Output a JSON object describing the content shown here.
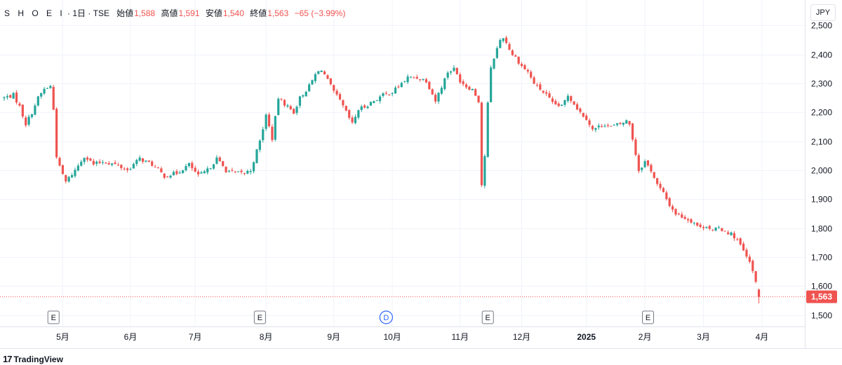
{
  "header": {
    "symbol": "S H O E I",
    "interval": " · 1日 · ",
    "exchange": "TSE",
    "open_label": "始値",
    "open": "1,588",
    "high_label": "高値",
    "high": "1,591",
    "low_label": "安値",
    "low": "1,540",
    "close_label": "終値",
    "close": "1,563",
    "change": "−65 (−3.99%)"
  },
  "currency_button": "JPY",
  "branding": {
    "mark": "17",
    "name": "TradingView"
  },
  "colors": {
    "up": "#26a69a",
    "down": "#ef5350",
    "event_e": "#131722",
    "event_d": "#2962ff"
  },
  "chart_data": {
    "type": "candlestick",
    "ylim": [
      1470,
      2530
    ],
    "y_ticks": [
      "1,500",
      "1,600",
      "1,700",
      "1,800",
      "1,900",
      "2,000",
      "2,100",
      "2,200",
      "2,300",
      "2,400",
      "2,500"
    ],
    "y_tick_values": [
      1500,
      1600,
      1700,
      1800,
      1900,
      2000,
      2100,
      2200,
      2300,
      2400,
      2500
    ],
    "x_ticks": [
      {
        "label": "5月",
        "index": 19,
        "bold": false
      },
      {
        "label": "6月",
        "index": 41,
        "bold": false
      },
      {
        "label": "7月",
        "index": 62,
        "bold": false
      },
      {
        "label": "8月",
        "index": 85,
        "bold": false
      },
      {
        "label": "9月",
        "index": 107,
        "bold": false
      },
      {
        "label": "10月",
        "index": 126,
        "bold": false
      },
      {
        "label": "11月",
        "index": 148,
        "bold": false
      },
      {
        "label": "12月",
        "index": 168,
        "bold": false
      },
      {
        "label": "2025",
        "index": 189,
        "bold": true
      },
      {
        "label": "2月",
        "index": 208,
        "bold": false
      },
      {
        "label": "3月",
        "index": 227,
        "bold": false
      },
      {
        "label": "4月",
        "index": 246,
        "bold": false
      }
    ],
    "last_price": 1563,
    "last_price_label": "1,563",
    "events": [
      {
        "label": "E",
        "index": 16
      },
      {
        "label": "E",
        "index": 83
      },
      {
        "label": "D",
        "index": 124
      },
      {
        "label": "E",
        "index": 157
      },
      {
        "label": "E",
        "index": 209
      }
    ],
    "close_anchors": [
      [
        0,
        2250
      ],
      [
        3,
        2260
      ],
      [
        5,
        2220
      ],
      [
        7,
        2160
      ],
      [
        9,
        2200
      ],
      [
        11,
        2250
      ],
      [
        13,
        2280
      ],
      [
        15,
        2290
      ],
      [
        16,
        2210
      ],
      [
        17,
        2050
      ],
      [
        18,
        2010
      ],
      [
        20,
        1960
      ],
      [
        23,
        2000
      ],
      [
        26,
        2050
      ],
      [
        29,
        2020
      ],
      [
        32,
        2030
      ],
      [
        36,
        2020
      ],
      [
        40,
        2000
      ],
      [
        44,
        2040
      ],
      [
        48,
        2020
      ],
      [
        52,
        1980
      ],
      [
        56,
        1990
      ],
      [
        60,
        2020
      ],
      [
        63,
        1980
      ],
      [
        66,
        2000
      ],
      [
        69,
        2040
      ],
      [
        72,
        2000
      ],
      [
        75,
        1990
      ],
      [
        78,
        1990
      ],
      [
        80,
        2000
      ],
      [
        83,
        2100
      ],
      [
        85,
        2190
      ],
      [
        87,
        2110
      ],
      [
        89,
        2250
      ],
      [
        91,
        2230
      ],
      [
        94,
        2200
      ],
      [
        96,
        2250
      ],
      [
        99,
        2290
      ],
      [
        101,
        2330
      ],
      [
        103,
        2350
      ],
      [
        105,
        2310
      ],
      [
        107,
        2270
      ],
      [
        109,
        2240
      ],
      [
        111,
        2200
      ],
      [
        113,
        2160
      ],
      [
        115,
        2210
      ],
      [
        117,
        2220
      ],
      [
        120,
        2240
      ],
      [
        123,
        2260
      ],
      [
        126,
        2270
      ],
      [
        129,
        2300
      ],
      [
        131,
        2320
      ],
      [
        134,
        2320
      ],
      [
        137,
        2310
      ],
      [
        140,
        2240
      ],
      [
        142,
        2290
      ],
      [
        144,
        2340
      ],
      [
        146,
        2350
      ],
      [
        148,
        2310
      ],
      [
        150,
        2290
      ],
      [
        152,
        2280
      ],
      [
        154,
        2240
      ],
      [
        155,
        1950
      ],
      [
        156,
        2050
      ],
      [
        157,
        2230
      ],
      [
        158,
        2350
      ],
      [
        159,
        2390
      ],
      [
        160,
        2420
      ],
      [
        161,
        2450
      ],
      [
        162,
        2460
      ],
      [
        163,
        2440
      ],
      [
        164,
        2420
      ],
      [
        165,
        2400
      ],
      [
        166,
        2390
      ],
      [
        168,
        2360
      ],
      [
        170,
        2340
      ],
      [
        172,
        2300
      ],
      [
        174,
        2280
      ],
      [
        176,
        2260
      ],
      [
        178,
        2230
      ],
      [
        181,
        2220
      ],
      [
        183,
        2260
      ],
      [
        185,
        2230
      ],
      [
        187,
        2200
      ],
      [
        189,
        2180
      ],
      [
        191,
        2140
      ],
      [
        193,
        2150
      ],
      [
        195,
        2160
      ],
      [
        197,
        2150
      ],
      [
        200,
        2160
      ],
      [
        202,
        2170
      ],
      [
        203,
        2160
      ],
      [
        204,
        2110
      ],
      [
        206,
        2000
      ],
      [
        208,
        2030
      ],
      [
        210,
        2000
      ],
      [
        212,
        1950
      ],
      [
        214,
        1920
      ],
      [
        216,
        1880
      ],
      [
        218,
        1850
      ],
      [
        220,
        1840
      ],
      [
        222,
        1830
      ],
      [
        224,
        1820
      ],
      [
        226,
        1800
      ],
      [
        228,
        1810
      ],
      [
        230,
        1790
      ],
      [
        232,
        1800
      ],
      [
        234,
        1790
      ],
      [
        236,
        1780
      ],
      [
        238,
        1760
      ],
      [
        240,
        1720
      ],
      [
        242,
        1680
      ],
      [
        244,
        1620
      ],
      [
        245,
        1563
      ]
    ]
  }
}
